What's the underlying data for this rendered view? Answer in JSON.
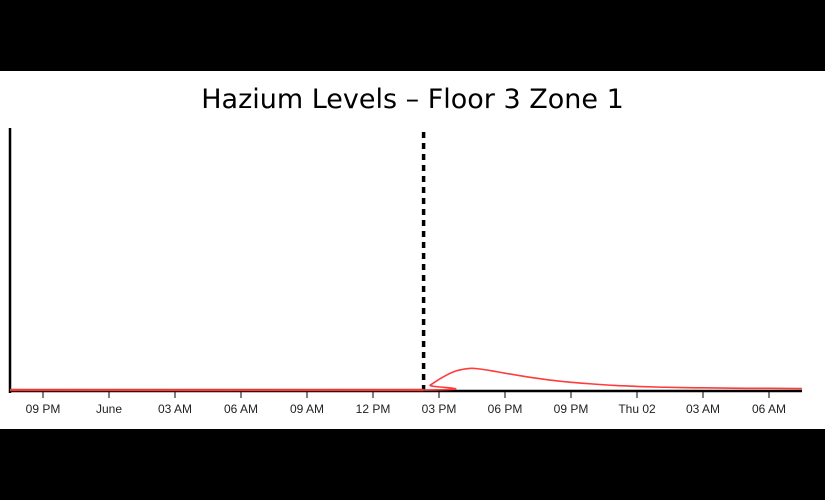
{
  "chart_data": {
    "type": "line",
    "title": "Hazium Levels – Floor 3 Zone 1",
    "xlabel": "",
    "ylabel": "",
    "x_tick_labels": [
      "09 PM",
      "June",
      "03 AM",
      "06 AM",
      "09 AM",
      "12 PM",
      "03 PM",
      "06 PM",
      "09 PM",
      "Thu 02",
      "03 AM",
      "06 AM"
    ],
    "x_range_hours": [
      -1.5,
      34.5
    ],
    "ylim": [
      0,
      10
    ],
    "grid": false,
    "marker_at_hours": 17.3,
    "series": [
      {
        "x_hours": [
          -1.5,
          17.3,
          17.6,
          18.2,
          18.8,
          19.4,
          19.8,
          20.4,
          21.0,
          22.0,
          23.0,
          24.0,
          25.0,
          26.0,
          27.0,
          28.0,
          29.0,
          30.0,
          31.0,
          32.0,
          33.0,
          34.5
        ],
        "values": [
          0,
          0,
          0.2,
          0.55,
          0.8,
          0.9,
          0.88,
          0.8,
          0.7,
          0.55,
          0.42,
          0.32,
          0.25,
          0.19,
          0.15,
          0.12,
          0.1,
          0.09,
          0.08,
          0.07,
          0.07,
          0.06
        ]
      }
    ],
    "colors": {
      "line": "#ff3b3b",
      "baseline": "#c0392b",
      "marker": "#000000",
      "axis": "#000000"
    }
  }
}
